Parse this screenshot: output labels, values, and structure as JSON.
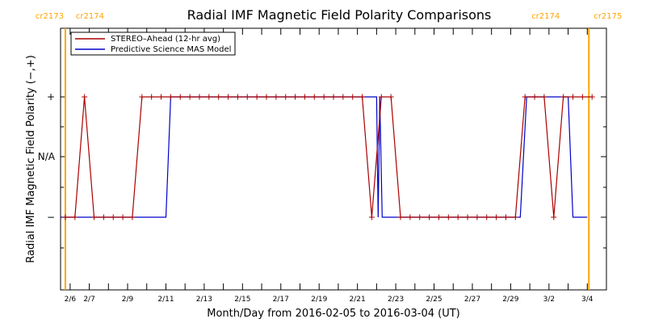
{
  "chart_data": {
    "type": "line",
    "title": "Radial IMF Magnetic Field Polarity Comparisons",
    "xlabel": "Month/Day from 2016-02-05 to 2016-03-04 (UT)",
    "ylabel": "Radial IMF Magnetic Field Polarity (−,+)",
    "x_start": "2016-02-05",
    "x_end": "2016-03-04",
    "xlim": [
      "2016-02-05T12:00",
      "2016-03-05T00:00"
    ],
    "x_ticks": [
      "2/6",
      "2/7",
      "2/8",
      "2/9",
      "2/10",
      "2/11",
      "2/12",
      "2/13",
      "2/14",
      "2/15",
      "2/16",
      "2/17",
      "2/18",
      "2/19",
      "2/20",
      "2/21",
      "2/22",
      "2/23",
      "2/24",
      "2/25",
      "2/26",
      "2/27",
      "2/28",
      "2/29",
      "3/1",
      "3/2",
      "3/3",
      "3/4"
    ],
    "x_tick_labels": [
      "2/6",
      "2/7",
      "",
      "2/9",
      "",
      "2/11",
      "",
      "2/13",
      "",
      "2/15",
      "",
      "2/17",
      "",
      "2/19",
      "",
      "2/21",
      "",
      "2/23",
      "",
      "2/25",
      "",
      "2/27",
      "",
      "2/29",
      "",
      "3/2",
      "",
      "3/4"
    ],
    "y_categories": [
      "−",
      "N/A",
      "+"
    ],
    "ylim": [
      "",
      ""
    ],
    "grid": false,
    "legend_position": "top-left",
    "carrington_markers": [
      {
        "x": "2016-02-05T18:00",
        "left_label": "cr2173",
        "right_label": "cr2174",
        "color": "#FFA500"
      },
      {
        "x": "2016-03-04T02:00",
        "left_label": "cr2174",
        "right_label": "cr2175",
        "color": "#FFA500"
      }
    ],
    "series": [
      {
        "name": "STEREO–Ahead (12-hr avg)",
        "color": "#AA0000",
        "marker": "plus",
        "points": [
          [
            "2016-02-05T18:00",
            "−"
          ],
          [
            "2016-02-06T06:00",
            "−"
          ],
          [
            "2016-02-06T18:00",
            "+"
          ],
          [
            "2016-02-07T06:00",
            "−"
          ],
          [
            "2016-02-07T18:00",
            "−"
          ],
          [
            "2016-02-08T06:00",
            "−"
          ],
          [
            "2016-02-08T18:00",
            "−"
          ],
          [
            "2016-02-09T06:00",
            "−"
          ],
          [
            "2016-02-09T18:00",
            "+"
          ],
          [
            "2016-02-10T06:00",
            "+"
          ],
          [
            "2016-02-10T18:00",
            "+"
          ],
          [
            "2016-02-11T06:00",
            "+"
          ],
          [
            "2016-02-11T18:00",
            "+"
          ],
          [
            "2016-02-12T06:00",
            "+"
          ],
          [
            "2016-02-12T18:00",
            "+"
          ],
          [
            "2016-02-13T06:00",
            "+"
          ],
          [
            "2016-02-13T18:00",
            "+"
          ],
          [
            "2016-02-14T06:00",
            "+"
          ],
          [
            "2016-02-14T18:00",
            "+"
          ],
          [
            "2016-02-15T06:00",
            "+"
          ],
          [
            "2016-02-15T18:00",
            "+"
          ],
          [
            "2016-02-16T06:00",
            "+"
          ],
          [
            "2016-02-16T18:00",
            "+"
          ],
          [
            "2016-02-17T06:00",
            "+"
          ],
          [
            "2016-02-17T18:00",
            "+"
          ],
          [
            "2016-02-18T06:00",
            "+"
          ],
          [
            "2016-02-18T18:00",
            "+"
          ],
          [
            "2016-02-19T06:00",
            "+"
          ],
          [
            "2016-02-19T18:00",
            "+"
          ],
          [
            "2016-02-20T06:00",
            "+"
          ],
          [
            "2016-02-20T18:00",
            "+"
          ],
          [
            "2016-02-21T06:00",
            "+"
          ],
          [
            "2016-02-21T18:00",
            "−"
          ],
          [
            "2016-02-22T06:00",
            "+"
          ],
          [
            "2016-02-22T18:00",
            "+"
          ],
          [
            "2016-02-23T06:00",
            "−"
          ],
          [
            "2016-02-23T18:00",
            "−"
          ],
          [
            "2016-02-24T06:00",
            "−"
          ],
          [
            "2016-02-24T18:00",
            "−"
          ],
          [
            "2016-02-25T06:00",
            "−"
          ],
          [
            "2016-02-25T18:00",
            "−"
          ],
          [
            "2016-02-26T06:00",
            "−"
          ],
          [
            "2016-02-26T18:00",
            "−"
          ],
          [
            "2016-02-27T06:00",
            "−"
          ],
          [
            "2016-02-27T18:00",
            "−"
          ],
          [
            "2016-02-28T06:00",
            "−"
          ],
          [
            "2016-02-28T18:00",
            "−"
          ],
          [
            "2016-02-29T06:00",
            "−"
          ],
          [
            "2016-02-29T18:00",
            "+"
          ],
          [
            "2016-03-01T06:00",
            "+"
          ],
          [
            "2016-03-01T18:00",
            "+"
          ],
          [
            "2016-03-02T06:00",
            "−"
          ],
          [
            "2016-03-02T18:00",
            "+"
          ],
          [
            "2016-03-03T06:00",
            "+"
          ],
          [
            "2016-03-03T18:00",
            "+"
          ],
          [
            "2016-03-04T06:00",
            "+"
          ]
        ]
      },
      {
        "name": "Predictive Science MAS Model",
        "color": "#0000CC",
        "marker": "none",
        "points": [
          [
            "2016-02-05T12:00",
            "−"
          ],
          [
            "2016-02-11T00:00",
            "−"
          ],
          [
            "2016-02-11T06:00",
            "+"
          ],
          [
            "2016-02-22T00:00",
            "+"
          ],
          [
            "2016-02-22T02:00",
            "−"
          ],
          [
            "2016-02-22T04:00",
            "+"
          ],
          [
            "2016-02-22T07:00",
            "−"
          ],
          [
            "2016-02-29T12:00",
            "−"
          ],
          [
            "2016-02-29T20:00",
            "+"
          ],
          [
            "2016-03-03T00:00",
            "+"
          ],
          [
            "2016-03-03T06:00",
            "−"
          ],
          [
            "2016-03-04T00:00",
            "−"
          ]
        ]
      }
    ]
  }
}
